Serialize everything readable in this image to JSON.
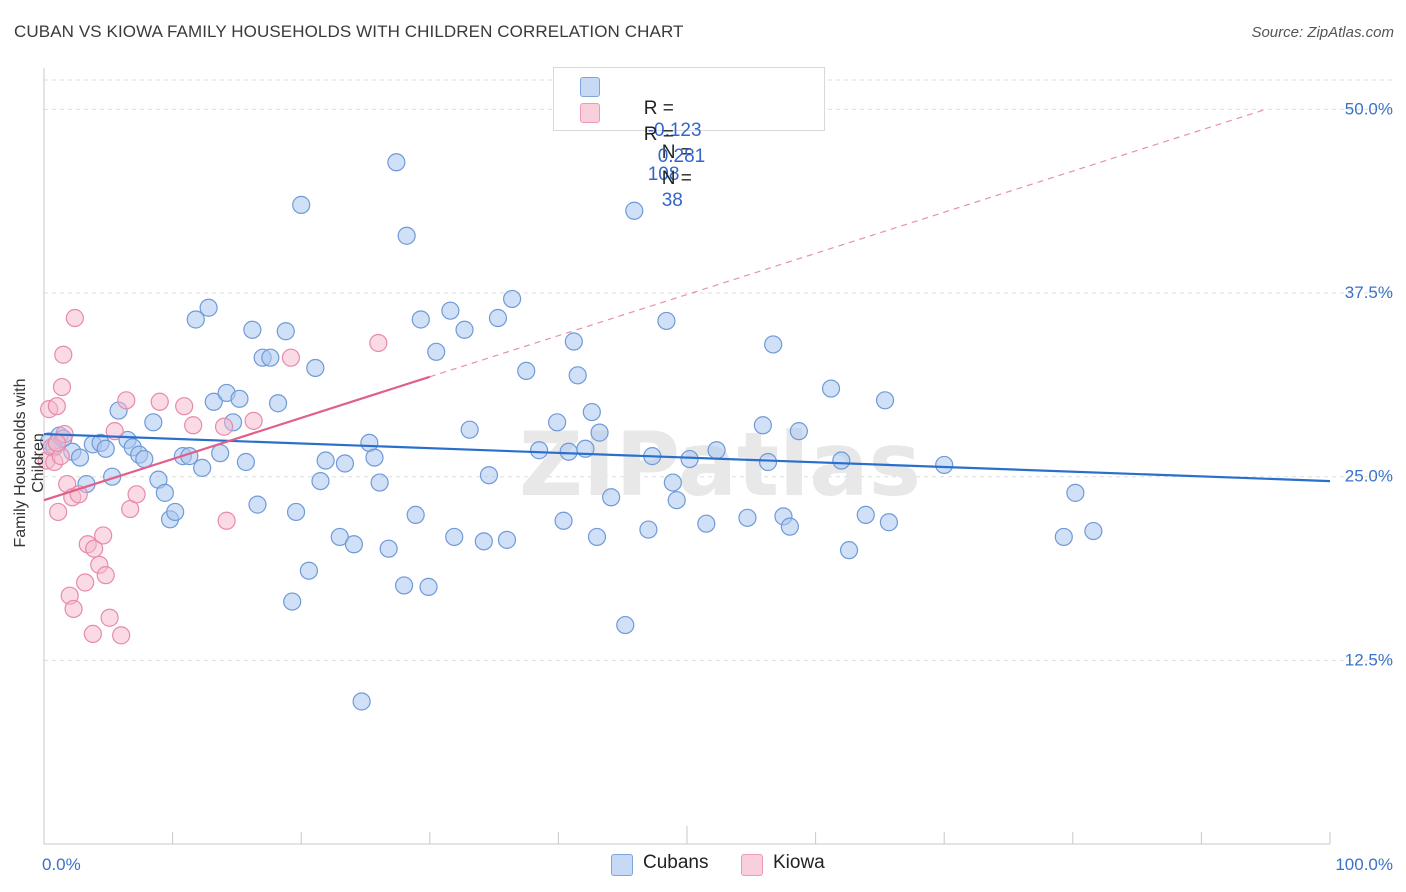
{
  "title": "CUBAN VS KIOWA FAMILY HOUSEHOLDS WITH CHILDREN CORRELATION CHART",
  "source": "Source: ZipAtlas.com",
  "watermark": "ZIPatlas",
  "legend": {
    "cubans": {
      "r_label": "R =",
      "r_value": "-0.123",
      "n_label": "N =",
      "n_value": "108"
    },
    "kiowa": {
      "r_label": "R =",
      "r_value": "0.281",
      "n_label": "N =",
      "n_value": "38"
    }
  },
  "colors": {
    "cubans_fill": "#a9c6ef",
    "cubans_stroke": "#6f9ad8",
    "cubans_line": "#2a6fcc",
    "kiowa_fill": "#f5b8cb",
    "kiowa_stroke": "#e88aa8",
    "kiowa_line": "#e0608a",
    "tick_label": "#3a72c8"
  },
  "chart_data": {
    "type": "scatter",
    "ylabel": "Family Households with Children",
    "xlim": [
      0,
      100
    ],
    "ylim": [
      0,
      52
    ],
    "x_tick_labels": [
      "0.0%",
      "100.0%"
    ],
    "y_ticks": [
      12.5,
      25.0,
      37.5,
      50.0
    ],
    "y_tick_labels": [
      "12.5%",
      "25.0%",
      "37.5%",
      "50.0%"
    ],
    "grid": true,
    "legend_position": "top-center",
    "series": [
      {
        "name": "Cubans",
        "trend": {
          "x": [
            0,
            100
          ],
          "y": [
            27.9,
            24.7
          ]
        },
        "points": [
          [
            0.4,
            27.4
          ],
          [
            0.8,
            27.0
          ],
          [
            1.2,
            27.8
          ],
          [
            1.5,
            27.6
          ],
          [
            2.2,
            26.7
          ],
          [
            2.8,
            26.3
          ],
          [
            3.3,
            24.5
          ],
          [
            3.8,
            27.2
          ],
          [
            4.4,
            27.3
          ],
          [
            4.8,
            26.9
          ],
          [
            5.3,
            25.0
          ],
          [
            5.8,
            29.5
          ],
          [
            6.5,
            27.5
          ],
          [
            6.9,
            27.0
          ],
          [
            7.4,
            26.5
          ],
          [
            7.8,
            26.2
          ],
          [
            8.5,
            28.7
          ],
          [
            8.9,
            24.8
          ],
          [
            9.4,
            23.9
          ],
          [
            9.8,
            22.1
          ],
          [
            10.2,
            22.6
          ],
          [
            10.8,
            26.4
          ],
          [
            11.3,
            26.4
          ],
          [
            11.8,
            35.7
          ],
          [
            12.3,
            25.6
          ],
          [
            12.8,
            36.5
          ],
          [
            13.2,
            30.1
          ],
          [
            13.7,
            26.6
          ],
          [
            14.2,
            30.7
          ],
          [
            14.7,
            28.7
          ],
          [
            15.2,
            30.3
          ],
          [
            15.7,
            26.0
          ],
          [
            16.2,
            35.0
          ],
          [
            16.6,
            23.1
          ],
          [
            17.0,
            33.1
          ],
          [
            17.6,
            33.1
          ],
          [
            18.2,
            30.0
          ],
          [
            18.8,
            34.9
          ],
          [
            19.3,
            16.5
          ],
          [
            19.6,
            22.6
          ],
          [
            20.0,
            43.5
          ],
          [
            20.6,
            18.6
          ],
          [
            21.1,
            32.4
          ],
          [
            21.5,
            24.7
          ],
          [
            21.9,
            26.1
          ],
          [
            23.0,
            20.9
          ],
          [
            23.4,
            25.9
          ],
          [
            24.1,
            20.4
          ],
          [
            24.7,
            9.7
          ],
          [
            25.3,
            27.3
          ],
          [
            25.7,
            26.3
          ],
          [
            26.1,
            24.6
          ],
          [
            26.8,
            20.1
          ],
          [
            27.4,
            46.4
          ],
          [
            28.0,
            17.6
          ],
          [
            28.2,
            41.4
          ],
          [
            28.9,
            22.4
          ],
          [
            29.3,
            35.7
          ],
          [
            29.9,
            17.5
          ],
          [
            30.5,
            33.5
          ],
          [
            31.6,
            36.3
          ],
          [
            31.9,
            20.9
          ],
          [
            32.7,
            35.0
          ],
          [
            33.1,
            28.2
          ],
          [
            34.2,
            20.6
          ],
          [
            34.6,
            25.1
          ],
          [
            35.3,
            35.8
          ],
          [
            36.0,
            20.7
          ],
          [
            36.4,
            37.1
          ],
          [
            37.5,
            32.2
          ],
          [
            38.5,
            26.8
          ],
          [
            39.9,
            28.7
          ],
          [
            40.4,
            22.0
          ],
          [
            40.8,
            26.7
          ],
          [
            41.2,
            34.2
          ],
          [
            41.5,
            31.9
          ],
          [
            42.1,
            26.9
          ],
          [
            42.6,
            29.4
          ],
          [
            43.0,
            20.9
          ],
          [
            43.2,
            28.0
          ],
          [
            44.1,
            23.6
          ],
          [
            45.2,
            14.9
          ],
          [
            45.9,
            43.1
          ],
          [
            47.0,
            21.4
          ],
          [
            47.3,
            26.4
          ],
          [
            48.4,
            35.6
          ],
          [
            48.9,
            24.6
          ],
          [
            49.2,
            23.4
          ],
          [
            50.2,
            26.2
          ],
          [
            51.5,
            21.8
          ],
          [
            52.3,
            26.8
          ],
          [
            54.7,
            22.2
          ],
          [
            55.9,
            28.5
          ],
          [
            56.3,
            26.0
          ],
          [
            56.7,
            34.0
          ],
          [
            57.5,
            22.3
          ],
          [
            58.0,
            21.6
          ],
          [
            58.7,
            28.1
          ],
          [
            61.2,
            31.0
          ],
          [
            62.0,
            26.1
          ],
          [
            62.6,
            20.0
          ],
          [
            63.9,
            22.4
          ],
          [
            65.4,
            30.2
          ],
          [
            65.7,
            21.9
          ],
          [
            70.0,
            25.8
          ],
          [
            79.3,
            20.9
          ],
          [
            80.2,
            23.9
          ],
          [
            81.6,
            21.3
          ]
        ]
      },
      {
        "name": "Kiowa",
        "trend": {
          "x": [
            0,
            30
          ],
          "y": [
            23.4,
            31.8
          ]
        },
        "trend_extended": {
          "x": [
            30,
            95
          ],
          "y": [
            31.8,
            50.0
          ]
        },
        "points": [
          [
            0.2,
            26.1
          ],
          [
            0.4,
            29.6
          ],
          [
            0.6,
            27.0
          ],
          [
            0.8,
            26.0
          ],
          [
            1.0,
            29.8
          ],
          [
            1.1,
            22.6
          ],
          [
            1.3,
            26.4
          ],
          [
            1.4,
            31.1
          ],
          [
            1.5,
            33.3
          ],
          [
            1.6,
            27.9
          ],
          [
            1.8,
            24.5
          ],
          [
            2.0,
            16.9
          ],
          [
            2.2,
            23.6
          ],
          [
            2.3,
            16.0
          ],
          [
            2.4,
            35.8
          ],
          [
            2.7,
            23.8
          ],
          [
            3.2,
            17.8
          ],
          [
            3.4,
            20.4
          ],
          [
            3.8,
            14.3
          ],
          [
            3.9,
            20.1
          ],
          [
            4.3,
            19.0
          ],
          [
            4.6,
            21.0
          ],
          [
            4.8,
            18.3
          ],
          [
            5.1,
            15.4
          ],
          [
            5.5,
            28.1
          ],
          [
            6.0,
            14.2
          ],
          [
            6.4,
            30.2
          ],
          [
            6.7,
            22.8
          ],
          [
            7.2,
            23.8
          ],
          [
            9.0,
            30.1
          ],
          [
            10.9,
            29.8
          ],
          [
            11.6,
            28.5
          ],
          [
            14.0,
            28.4
          ],
          [
            14.2,
            22.0
          ],
          [
            16.3,
            28.8
          ],
          [
            19.2,
            33.1
          ],
          [
            26.0,
            34.1
          ],
          [
            1.0,
            27.3
          ]
        ]
      }
    ]
  },
  "bottom_legend": {
    "cubans": "Cubans",
    "kiowa": "Kiowa"
  }
}
